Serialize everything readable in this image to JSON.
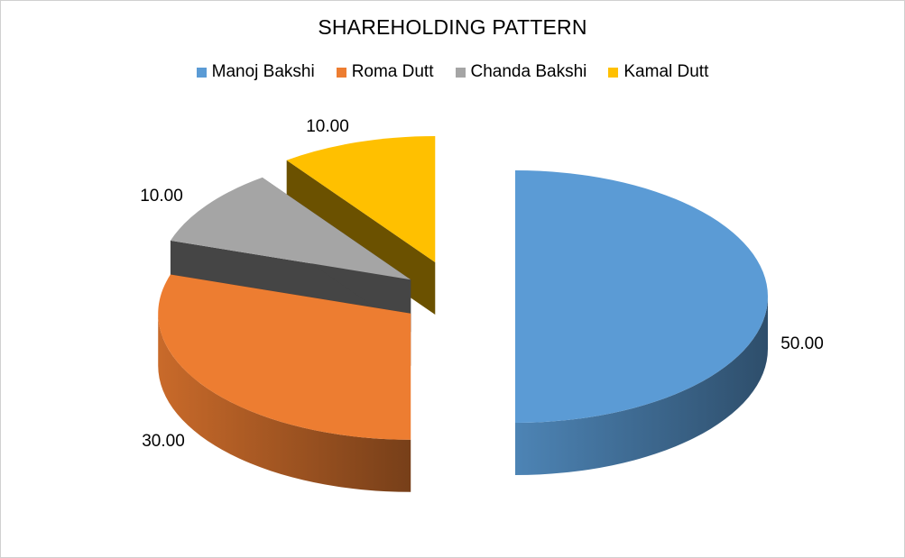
{
  "chart_data": {
    "type": "pie",
    "title": "SHAREHOLDING PATTERN",
    "legend_position": "top",
    "slices": [
      {
        "label": "Manoj Bakshi",
        "value": 50.0,
        "value_label": "50.00",
        "color": "#5B9BD5"
      },
      {
        "label": "Roma Dutt",
        "value": 30.0,
        "value_label": "30.00",
        "color": "#ED7D31"
      },
      {
        "label": "Chanda Bakshi",
        "value": 10.0,
        "value_label": "10.00",
        "color": "#A5A5A5"
      },
      {
        "label": "Kamal Dutt",
        "value": 10.0,
        "value_label": "10.00",
        "color": "#FFC000"
      }
    ],
    "style": "3d-exploded"
  }
}
